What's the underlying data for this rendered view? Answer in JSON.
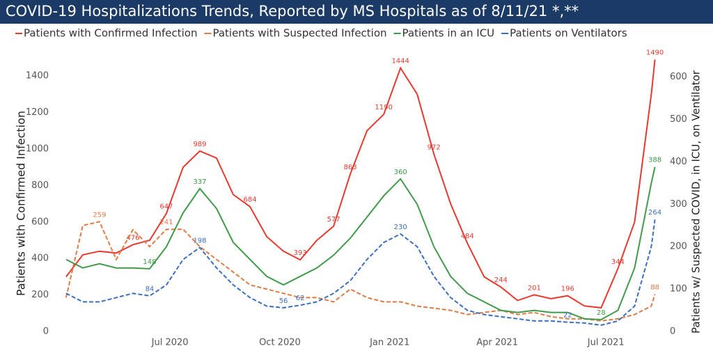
{
  "chart_data": {
    "type": "line",
    "title": "COVID-19 Hospitalizations Trends, Reported by MS Hospitals as of 8/11/21 *,**",
    "y_label": "Patients with Confirmed Infection",
    "y2_label": "Patients w/ Suspected COVID, in ICU, on Ventilator",
    "x": [
      "2020-04-05",
      "2020-04-19",
      "2020-05-03",
      "2020-05-17",
      "2020-05-31",
      "2020-06-14",
      "2020-06-28",
      "2020-07-12",
      "2020-07-26",
      "2020-08-09",
      "2020-08-23",
      "2020-09-06",
      "2020-09-20",
      "2020-10-04",
      "2020-10-18",
      "2020-11-01",
      "2020-11-15",
      "2020-11-29",
      "2020-12-13",
      "2020-12-27",
      "2021-01-10",
      "2021-01-24",
      "2021-02-07",
      "2021-02-21",
      "2021-03-07",
      "2021-03-21",
      "2021-04-04",
      "2021-04-18",
      "2021-05-02",
      "2021-05-16",
      "2021-05-30",
      "2021-06-13",
      "2021-06-27",
      "2021-07-11",
      "2021-07-25",
      "2021-08-08",
      "2021-08-11"
    ],
    "xlim": [
      "2020-04-01",
      "2021-08-20"
    ],
    "xticks": [
      {
        "value": "2020-07-01",
        "label": "Jul 2020"
      },
      {
        "value": "2020-10-01",
        "label": "Oct 2020"
      },
      {
        "value": "2021-01-01",
        "label": "Jan 2021"
      },
      {
        "value": "2021-04-01",
        "label": "Apr 2021"
      },
      {
        "value": "2021-07-01",
        "label": "Jul 2021"
      }
    ],
    "ylim": [
      0,
      1450
    ],
    "yticks": [
      0,
      200,
      400,
      600,
      800,
      1000,
      1200,
      1400
    ],
    "y2lim": [
      0,
      624
    ],
    "y2ticks": [
      0,
      100,
      200,
      300,
      400,
      500,
      600
    ],
    "grid": false,
    "legend": "top",
    "series": [
      {
        "name": "Patients with Confirmed Infection",
        "color": "#e8392f",
        "dashed": false,
        "values": [
          300,
          420,
          440,
          430,
          476,
          500,
          647,
          900,
          989,
          950,
          750,
          684,
          520,
          440,
          393,
          500,
          577,
          863,
          1100,
          1190,
          1444,
          1300,
          972,
          700,
          484,
          300,
          244,
          170,
          201,
          180,
          196,
          140,
          130,
          344,
          600,
          1300,
          1490
        ],
        "value_labels": [
          null,
          null,
          null,
          null,
          "476",
          null,
          "647",
          null,
          "989",
          null,
          null,
          "684",
          null,
          null,
          "393",
          null,
          "577",
          "863",
          null,
          "1190",
          "1444",
          null,
          "972",
          null,
          "484",
          null,
          "244",
          null,
          "201",
          null,
          "196",
          null,
          null,
          "344",
          null,
          null,
          "1490"
        ]
      },
      {
        "name": "Patients with Suspected Infection",
        "color": "#e07b45",
        "dashed": true,
        "axis": "y2",
        "values": [
          80,
          250,
          259,
          170,
          240,
          200,
          241,
          241,
          200,
          170,
          140,
          110,
          100,
          90,
          80,
          80,
          70,
          100,
          80,
          70,
          70,
          60,
          55,
          50,
          40,
          45,
          50,
          40,
          45,
          35,
          30,
          30,
          25,
          30,
          40,
          60,
          88
        ],
        "value_labels": [
          null,
          null,
          "259",
          null,
          null,
          null,
          "241",
          null,
          null,
          null,
          null,
          null,
          null,
          null,
          null,
          null,
          null,
          null,
          null,
          null,
          null,
          null,
          null,
          null,
          null,
          null,
          null,
          null,
          null,
          null,
          null,
          null,
          null,
          null,
          null,
          null,
          "88"
        ]
      },
      {
        "name": "Patients in an ICU",
        "color": "#3f9b4a",
        "dashed": false,
        "axis": "y2",
        "values": [
          170,
          150,
          160,
          150,
          150,
          148,
          200,
          280,
          337,
          290,
          210,
          170,
          130,
          110,
          130,
          150,
          180,
          220,
          270,
          320,
          360,
          300,
          200,
          130,
          90,
          70,
          50,
          45,
          50,
          45,
          45,
          30,
          28,
          50,
          150,
          350,
          388
        ],
        "value_labels": [
          null,
          null,
          null,
          null,
          null,
          "148",
          null,
          null,
          "337",
          null,
          null,
          null,
          null,
          null,
          null,
          null,
          null,
          null,
          null,
          null,
          "360",
          null,
          null,
          null,
          null,
          null,
          null,
          null,
          null,
          null,
          null,
          null,
          "28",
          null,
          null,
          null,
          "388"
        ]
      },
      {
        "name": "Patients on Ventilators",
        "color": "#3a6fc0",
        "dashed": true,
        "axis": "y2",
        "values": [
          90,
          70,
          70,
          80,
          90,
          84,
          110,
          170,
          198,
          150,
          110,
          80,
          60,
          56,
          62,
          70,
          90,
          120,
          170,
          210,
          230,
          200,
          130,
          80,
          50,
          40,
          35,
          30,
          25,
          25,
          22,
          20,
          15,
          25,
          60,
          200,
          264
        ],
        "value_labels": [
          null,
          null,
          null,
          null,
          null,
          "84",
          null,
          null,
          "198",
          null,
          null,
          null,
          null,
          "56",
          "62",
          null,
          null,
          null,
          null,
          null,
          "230",
          null,
          null,
          null,
          null,
          null,
          null,
          null,
          null,
          null,
          "22",
          null,
          null,
          null,
          null,
          null,
          "264"
        ]
      }
    ]
  }
}
